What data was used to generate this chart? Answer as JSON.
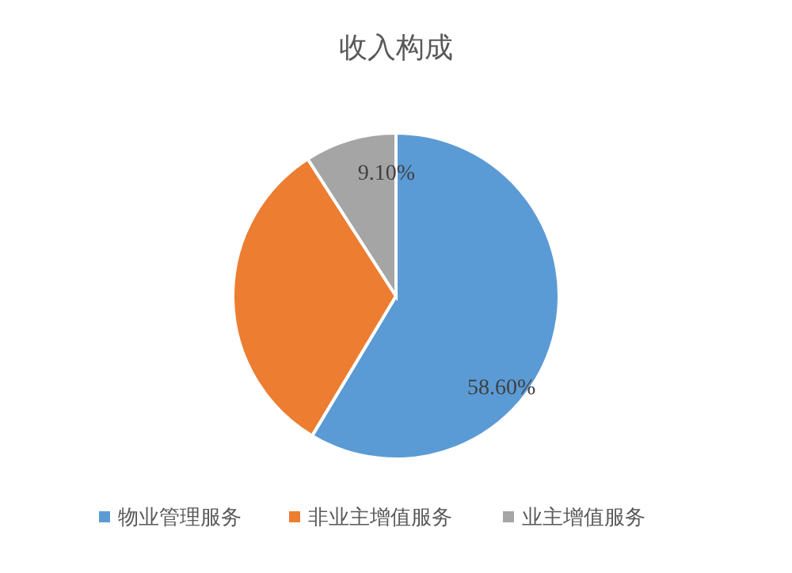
{
  "chart_data": {
    "type": "pie",
    "title": "收入构成",
    "categories": [
      "物业管理服务",
      "非业主增值服务",
      "业主增值服务"
    ],
    "values": [
      58.6,
      32.3,
      9.1
    ],
    "value_labels": [
      "58.60%",
      null,
      "9.10%"
    ],
    "colors": [
      "#5b9bd5",
      "#ed7d31",
      "#a5a5a5"
    ],
    "legend": "bottom"
  }
}
